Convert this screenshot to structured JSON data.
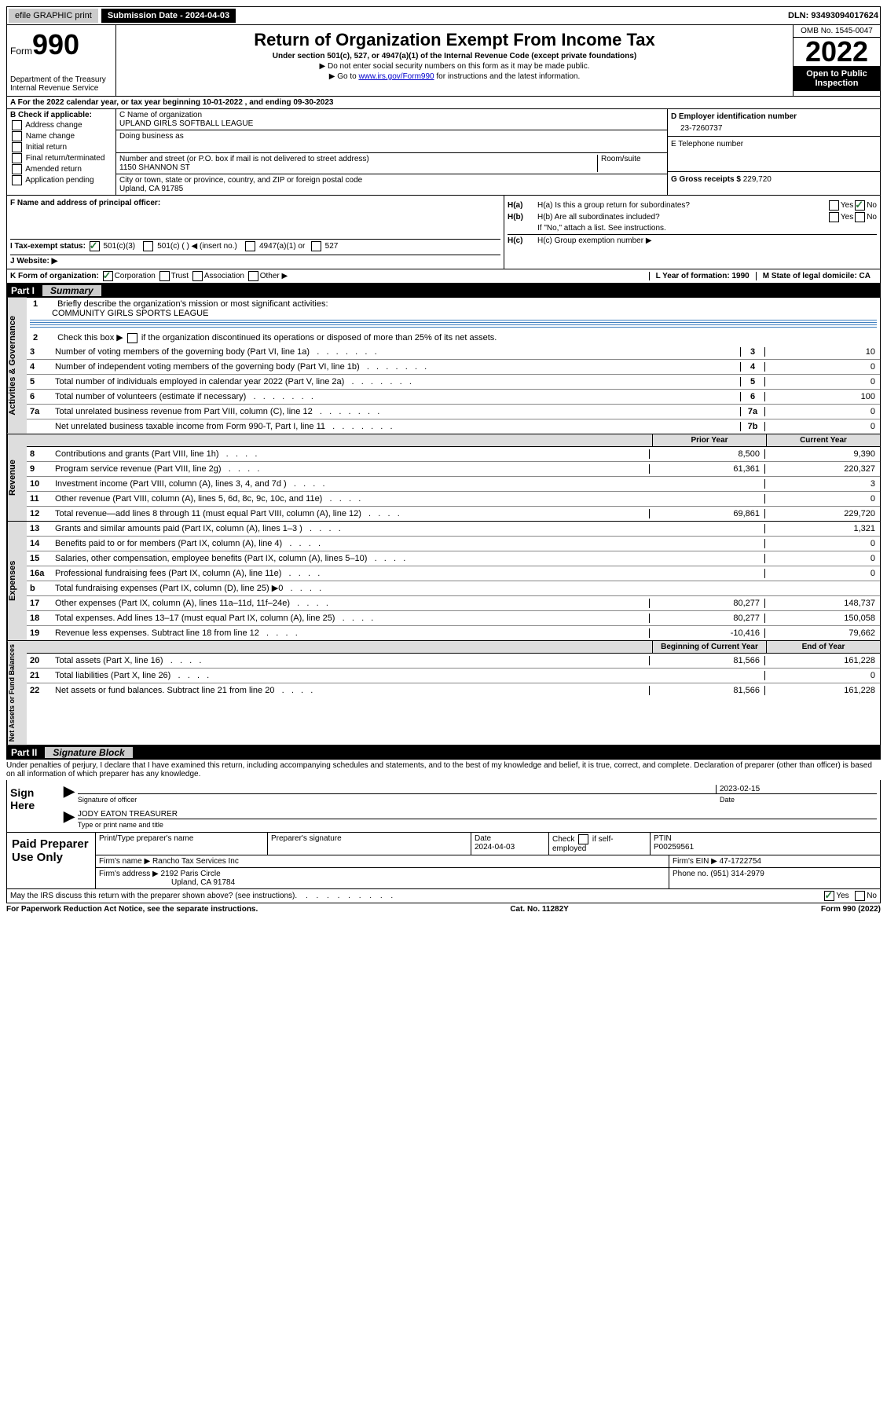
{
  "top": {
    "efile": "efile GRAPHIC print",
    "submission_label": "Submission Date - 2024-04-03",
    "dln": "DLN: 93493094017624"
  },
  "header": {
    "form_word": "Form",
    "form_number": "990",
    "dept": "Department of the Treasury",
    "irs": "Internal Revenue Service",
    "title": "Return of Organization Exempt From Income Tax",
    "subtitle": "Under section 501(c), 527, or 4947(a)(1) of the Internal Revenue Code (except private foundations)",
    "note1": "▶ Do not enter social security numbers on this form as it may be made public.",
    "note2_pre": "▶ Go to ",
    "note2_link": "www.irs.gov/Form990",
    "note2_post": " for instructions and the latest information.",
    "omb": "OMB No. 1545-0047",
    "year": "2022",
    "open": "Open to Public Inspection"
  },
  "period": {
    "text": "A For the 2022 calendar year, or tax year beginning 10-01-2022    , and ending 09-30-2023"
  },
  "boxB": {
    "label": "B Check if applicable:",
    "addr": "Address change",
    "name": "Name change",
    "initial": "Initial return",
    "finalr": "Final return/terminated",
    "amended": "Amended return",
    "app": "Application pending"
  },
  "boxC": {
    "label": "C Name of organization",
    "org": "UPLAND GIRLS SOFTBALL LEAGUE",
    "dba": "Doing business as",
    "street_label": "Number and street (or P.O. box if mail is not delivered to street address)",
    "room": "Room/suite",
    "street": "1150 SHANNON ST",
    "city_label": "City or town, state or province, country, and ZIP or foreign postal code",
    "city": "Upland, CA  91785"
  },
  "boxD": {
    "label": "D Employer identification number",
    "ein": "23-7260737"
  },
  "boxE": {
    "label": "E Telephone number"
  },
  "boxG": {
    "label": "G Gross receipts $",
    "val": "229,720"
  },
  "boxF": {
    "label": "F Name and address of principal officer:"
  },
  "boxH": {
    "ha": "H(a)  Is this a group return for subordinates?",
    "hb": "H(b)  Are all subordinates included?",
    "hb_note": "If \"No,\" attach a list. See instructions.",
    "hc": "H(c)  Group exemption number ▶",
    "yes": "Yes",
    "no": "No"
  },
  "boxI": {
    "label": "I    Tax-exempt status:",
    "c3": "501(c)(3)",
    "c": "501(c) (   ) ◀ (insert no.)",
    "a1": "4947(a)(1) or",
    "s527": "527"
  },
  "boxJ": {
    "label": "J   Website: ▶"
  },
  "boxK": {
    "label": "K Form of organization:",
    "corp": "Corporation",
    "trust": "Trust",
    "assoc": "Association",
    "other": "Other ▶"
  },
  "boxL": {
    "label": "L Year of formation: 1990"
  },
  "boxM": {
    "label": "M State of legal domicile: CA"
  },
  "part1": {
    "label": "Part I",
    "title": "Summary",
    "l1": "Briefly describe the organization's mission or most significant activities:",
    "l1_val": "COMMUNITY GIRLS SPORTS LEAGUE",
    "l2": "Check this box ▶        if the organization discontinued its operations or disposed of more than 25% of its net assets.",
    "prior": "Prior Year",
    "current": "Current Year",
    "begin": "Beginning of Current Year",
    "end": "End of Year"
  },
  "gov_rows": [
    {
      "n": "3",
      "d": "Number of voting members of the governing body (Part VI, line 1a)",
      "b": "3",
      "v": "10"
    },
    {
      "n": "4",
      "d": "Number of independent voting members of the governing body (Part VI, line 1b)",
      "b": "4",
      "v": "0"
    },
    {
      "n": "5",
      "d": "Total number of individuals employed in calendar year 2022 (Part V, line 2a)",
      "b": "5",
      "v": "0"
    },
    {
      "n": "6",
      "d": "Total number of volunteers (estimate if necessary)",
      "b": "6",
      "v": "100"
    },
    {
      "n": "7a",
      "d": "Total unrelated business revenue from Part VIII, column (C), line 12",
      "b": "7a",
      "v": "0"
    },
    {
      "n": "",
      "d": "Net unrelated business taxable income from Form 990-T, Part I, line 11",
      "b": "7b",
      "v": "0"
    }
  ],
  "rev_rows": [
    {
      "n": "8",
      "d": "Contributions and grants (Part VIII, line 1h)",
      "p": "8,500",
      "c": "9,390"
    },
    {
      "n": "9",
      "d": "Program service revenue (Part VIII, line 2g)",
      "p": "61,361",
      "c": "220,327"
    },
    {
      "n": "10",
      "d": "Investment income (Part VIII, column (A), lines 3, 4, and 7d )",
      "p": "",
      "c": "3"
    },
    {
      "n": "11",
      "d": "Other revenue (Part VIII, column (A), lines 5, 6d, 8c, 9c, 10c, and 11e)",
      "p": "",
      "c": "0"
    },
    {
      "n": "12",
      "d": "Total revenue—add lines 8 through 11 (must equal Part VIII, column (A), line 12)",
      "p": "69,861",
      "c": "229,720"
    }
  ],
  "exp_rows": [
    {
      "n": "13",
      "d": "Grants and similar amounts paid (Part IX, column (A), lines 1–3 )",
      "p": "",
      "c": "1,321"
    },
    {
      "n": "14",
      "d": "Benefits paid to or for members (Part IX, column (A), line 4)",
      "p": "",
      "c": "0"
    },
    {
      "n": "15",
      "d": "Salaries, other compensation, employee benefits (Part IX, column (A), lines 5–10)",
      "p": "",
      "c": "0"
    },
    {
      "n": "16a",
      "d": "Professional fundraising fees (Part IX, column (A), line 11e)",
      "p": "",
      "c": "0"
    },
    {
      "n": "b",
      "d": "Total fundraising expenses (Part IX, column (D), line 25) ▶0",
      "p": "shaded",
      "c": "shaded"
    },
    {
      "n": "17",
      "d": "Other expenses (Part IX, column (A), lines 11a–11d, 11f–24e)",
      "p": "80,277",
      "c": "148,737"
    },
    {
      "n": "18",
      "d": "Total expenses. Add lines 13–17 (must equal Part IX, column (A), line 25)",
      "p": "80,277",
      "c": "150,058"
    },
    {
      "n": "19",
      "d": "Revenue less expenses. Subtract line 18 from line 12",
      "p": "-10,416",
      "c": "79,662"
    }
  ],
  "net_rows": [
    {
      "n": "20",
      "d": "Total assets (Part X, line 16)",
      "p": "81,566",
      "c": "161,228"
    },
    {
      "n": "21",
      "d": "Total liabilities (Part X, line 26)",
      "p": "",
      "c": "0"
    },
    {
      "n": "22",
      "d": "Net assets or fund balances. Subtract line 21 from line 20",
      "p": "81,566",
      "c": "161,228"
    }
  ],
  "part2": {
    "label": "Part II",
    "title": "Signature Block",
    "penalty": "Under penalties of perjury, I declare that I have examined this return, including accompanying schedules and statements, and to the best of my knowledge and belief, it is true, correct, and complete. Declaration of preparer (other than officer) is based on all information of which preparer has any knowledge."
  },
  "sign": {
    "here": "Sign Here",
    "sig_officer": "Signature of officer",
    "date_label": "Date",
    "date": "2023-02-15",
    "name": "JODY EATON  TREASURER",
    "name_label": "Type or print name and title"
  },
  "prep": {
    "label": "Paid Preparer Use Only",
    "print_name": "Print/Type preparer's name",
    "prep_sig": "Preparer's signature",
    "date_l": "Date",
    "date": "2024-04-03",
    "check_self": "Check         if self-employed",
    "ptin_l": "PTIN",
    "ptin": "P00259561",
    "firm_l": "Firm's name     ▶",
    "firm": "Rancho Tax Services Inc",
    "ein_l": "Firm's EIN ▶",
    "ein": "47-1722754",
    "addr_l": "Firm's address ▶",
    "addr1": "2192 Paris Circle",
    "addr2": "Upland, CA  91784",
    "phone_l": "Phone no.",
    "phone": "(951) 314-2979"
  },
  "discuss": {
    "q": "May the IRS discuss this return with the preparer shown above? (see instructions)",
    "yes": "Yes",
    "no": "No"
  },
  "footer": {
    "left": "For Paperwork Reduction Act Notice, see the separate instructions.",
    "mid": "Cat. No. 11282Y",
    "right": "Form 990 (2022)"
  },
  "vtabs": {
    "gov": "Activities & Governance",
    "rev": "Revenue",
    "exp": "Expenses",
    "net": "Net Assets or Fund Balances"
  }
}
